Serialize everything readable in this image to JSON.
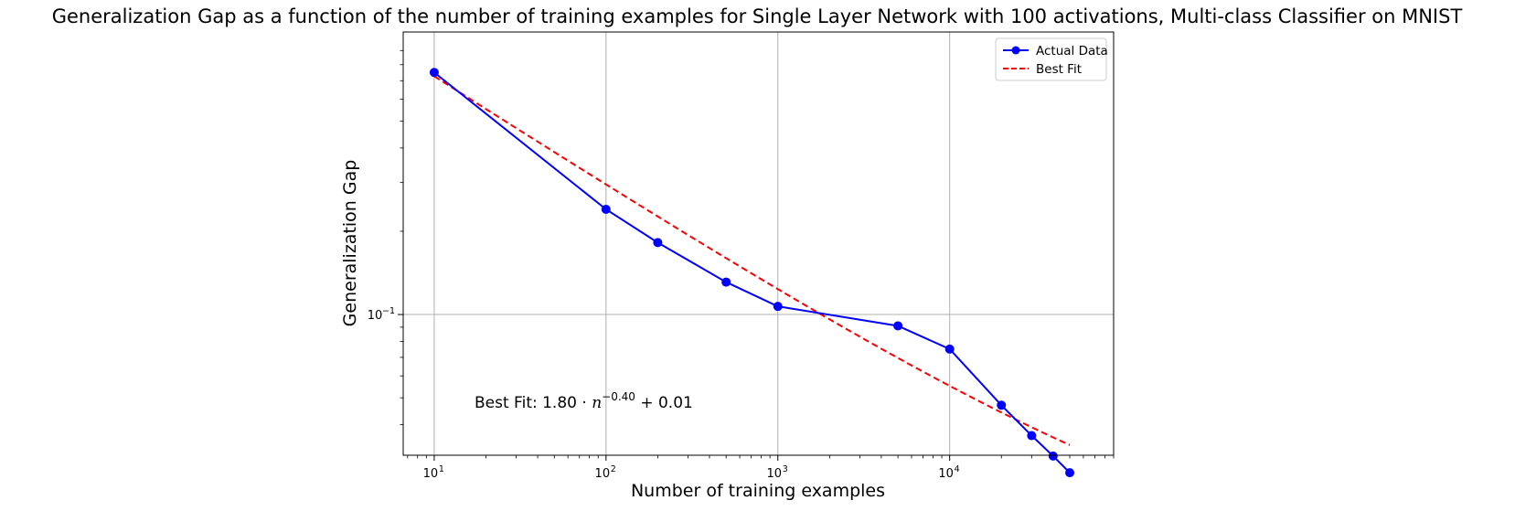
{
  "chart_data": {
    "type": "line",
    "title": "Generalization Gap as a function of the number of training examples for Single Layer Network with 100 activations, Multi-class Classifier on MNIST",
    "xlabel": "Number of training examples",
    "ylabel": "Generalization Gap",
    "xscale": "log",
    "yscale": "log",
    "xlim": [
      6.6,
      90000
    ],
    "ylim": [
      0.031,
      1.05
    ],
    "grid": true,
    "legend_position": "top-right",
    "x_ticks": [
      {
        "value": 10,
        "base": "10",
        "exp": "1"
      },
      {
        "value": 100,
        "base": "10",
        "exp": "2"
      },
      {
        "value": 1000,
        "base": "10",
        "exp": "3"
      },
      {
        "value": 10000,
        "base": "10",
        "exp": "4"
      }
    ],
    "y_ticks": [
      {
        "value": 0.1,
        "base": "10",
        "exp": "−1"
      }
    ],
    "series": [
      {
        "name": "Actual Data",
        "style": "solid-with-markers",
        "color": "#0000ff",
        "x": [
          10,
          100,
          200,
          500,
          1000,
          5000,
          10000,
          20000,
          30000,
          40000,
          50000
        ],
        "y": [
          0.75,
          0.24,
          0.182,
          0.131,
          0.107,
          0.091,
          0.075,
          0.047,
          0.0365,
          0.0308,
          0.0268
        ]
      },
      {
        "name": "Best Fit",
        "style": "dashed",
        "color": "#ff0000",
        "formula": {
          "a": 1.8,
          "b": -0.4,
          "c": 0.01
        },
        "x_range": [
          10,
          50000
        ]
      }
    ],
    "annotation": {
      "prefix": "Best Fit: 1.80 · ",
      "var": "n",
      "exponent": "−0.40",
      "suffix": " + 0.01"
    }
  }
}
